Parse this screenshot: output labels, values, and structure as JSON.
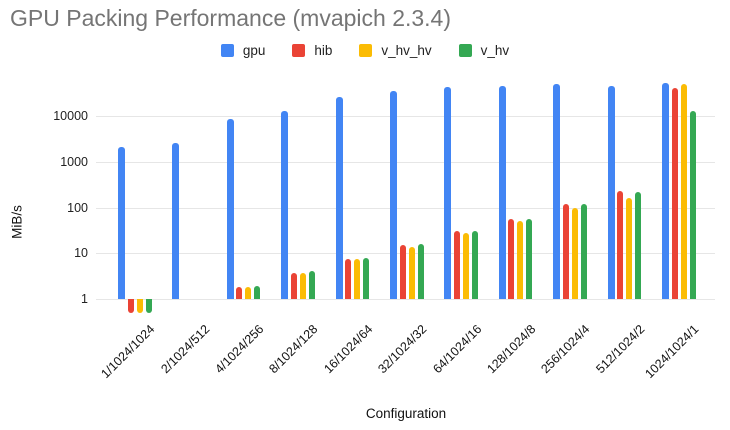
{
  "title": "GPU Packing Performance (mvapich 2.3.4)",
  "chart_data": {
    "type": "bar",
    "title": "GPU Packing Performance (mvapich 2.3.4)",
    "xlabel": "Configuration",
    "ylabel": "MiB/s",
    "y_scale": "log",
    "y_ticks": [
      1,
      10,
      100,
      1000,
      10000
    ],
    "ylim": [
      0.45,
      80000
    ],
    "grid": true,
    "legend_position": "top",
    "categories": [
      "1/1024/1024",
      "2/1024/512",
      "4/1024/256",
      "8/1024/128",
      "16/1024/64",
      "32/1024/32",
      "64/1024/16",
      "128/1024/8",
      "256/1024/4",
      "512/1024/2",
      "1024/1024/1"
    ],
    "series": [
      {
        "name": "gpu",
        "color": "#4285F4",
        "values": [
          2100,
          2600,
          8500,
          13000,
          26000,
          35000,
          44000,
          46000,
          50000,
          45000,
          53000
        ]
      },
      {
        "name": "hib",
        "color": "#EA4335",
        "values": [
          0.5,
          null,
          1.8,
          3.8,
          7.6,
          15,
          30,
          57,
          120,
          230,
          42000
        ]
      },
      {
        "name": "v_hv_hv",
        "color": "#FBBC04",
        "values": [
          0.5,
          null,
          1.8,
          3.8,
          7.6,
          14,
          28,
          51,
          100,
          165,
          50000
        ]
      },
      {
        "name": "v_hv",
        "color": "#34A853",
        "values": [
          0.5,
          null,
          1.9,
          4.0,
          7.9,
          16,
          31,
          57,
          122,
          225,
          13000
        ]
      }
    ]
  },
  "colors": {
    "title_text": "#757575",
    "axis_text": "#111111",
    "gridline": "#e6e6e6",
    "background": "#ffffff"
  }
}
